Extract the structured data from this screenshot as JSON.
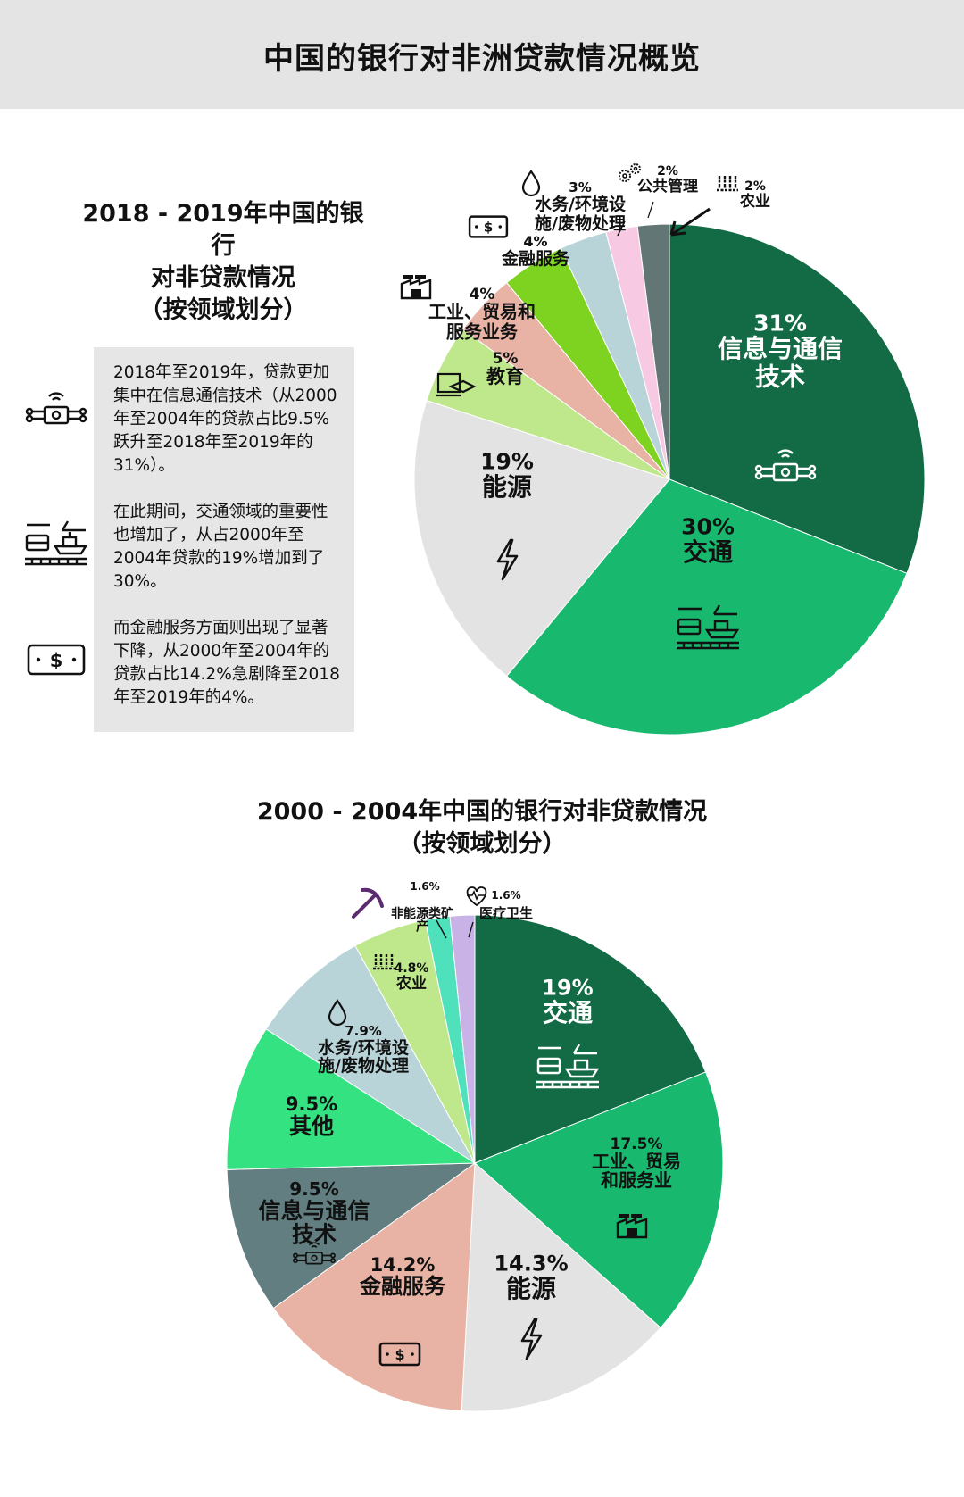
{
  "header": {
    "title": "中国的银行对非洲贷款情况概览"
  },
  "notes": [
    "2018年至2019年，贷款更加集中在信息通信技术（从2000年至2004年的贷款占比9.5%跃升至2018年至2019年的31%）。",
    "在此期间，交通领域的重要性也增加了，从占2000年至2004年贷款的19%增加到了30%。",
    "而金融服务方面则出现了显著下降，从2000年至2004年的贷款占比14.2%急剧降至2018年至2019年的4%。"
  ],
  "note_icons": [
    "ict-chip-icon",
    "transport-icon",
    "money-icon"
  ],
  "chart_data": [
    {
      "type": "pie",
      "title": [
        "2018 - 2019年中国的银行",
        "对非贷款情况",
        "（按领域划分）"
      ],
      "slices": [
        {
          "label": "信息与通信技术",
          "value": 31,
          "value_label": "31%",
          "color": "#136b45",
          "icon": "ict-chip-icon"
        },
        {
          "label": "交通",
          "value": 30,
          "value_label": "30%",
          "color": "#19b86f",
          "icon": "transport-icon"
        },
        {
          "label": "能源",
          "value": 19,
          "value_label": "19%",
          "color": "#e3e3e3",
          "icon": "lightning-icon"
        },
        {
          "label": "教育",
          "value": 5,
          "value_label": "5%",
          "color": "#bfe88c",
          "icon": "education-icon"
        },
        {
          "label": "工业、贸易和服务业务",
          "value": 4,
          "value_label": "4%",
          "color": "#e8b3a4",
          "icon": "factory-icon"
        },
        {
          "label": "金融服务",
          "value": 4,
          "value_label": "4%",
          "color": "#7ed321",
          "icon": "money-icon"
        },
        {
          "label": "水务/环境设施/废物处理",
          "value": 3,
          "value_label": "3%",
          "color": "#b8d4d8",
          "icon": "water-drop-icon"
        },
        {
          "label": "公共管理",
          "value": 2,
          "value_label": "2%",
          "color": "#f7c9e2",
          "icon": "gears-icon"
        },
        {
          "label": "农业",
          "value": 2,
          "value_label": "2%",
          "color": "#627676",
          "icon": "crops-icon"
        }
      ]
    },
    {
      "type": "pie",
      "title": [
        "2000 - 2004年中国的银行对非贷款情况",
        "（按领域划分）"
      ],
      "slices": [
        {
          "label": "交通",
          "value": 19,
          "value_label": "19%",
          "color": "#136b45",
          "icon": "transport-icon"
        },
        {
          "label": "工业、贸易和服务业",
          "value": 17.5,
          "value_label": "17.5%",
          "color": "#19b86f",
          "icon": "factory-icon"
        },
        {
          "label": "能源",
          "value": 14.3,
          "value_label": "14.3%",
          "color": "#e3e3e3",
          "icon": "lightning-icon"
        },
        {
          "label": "金融服务",
          "value": 14.2,
          "value_label": "14.2%",
          "color": "#e8b3a4",
          "icon": "money-icon"
        },
        {
          "label": "信息与通信技术",
          "value": 9.5,
          "value_label": "9.5%",
          "color": "#627e80",
          "icon": "ict-chip-icon"
        },
        {
          "label": "其他",
          "value": 9.5,
          "value_label": "9.5%",
          "color": "#34e282",
          "icon": ""
        },
        {
          "label": "水务/环境设施/废物处理",
          "value": 7.9,
          "value_label": "7.9%",
          "color": "#b8d4d8",
          "icon": "water-drop-icon"
        },
        {
          "label": "农业",
          "value": 4.8,
          "value_label": "4.8%",
          "color": "#bfe88c",
          "icon": "crops-icon"
        },
        {
          "label": "非能源类矿产",
          "value": 1.6,
          "value_label": "1.6%",
          "color": "#4fe0bc",
          "icon": "pickaxe-icon"
        },
        {
          "label": "医疗卫生",
          "value": 1.6,
          "value_label": "1.6%",
          "color": "#c9b2e6",
          "icon": "heart-icon"
        }
      ]
    }
  ]
}
